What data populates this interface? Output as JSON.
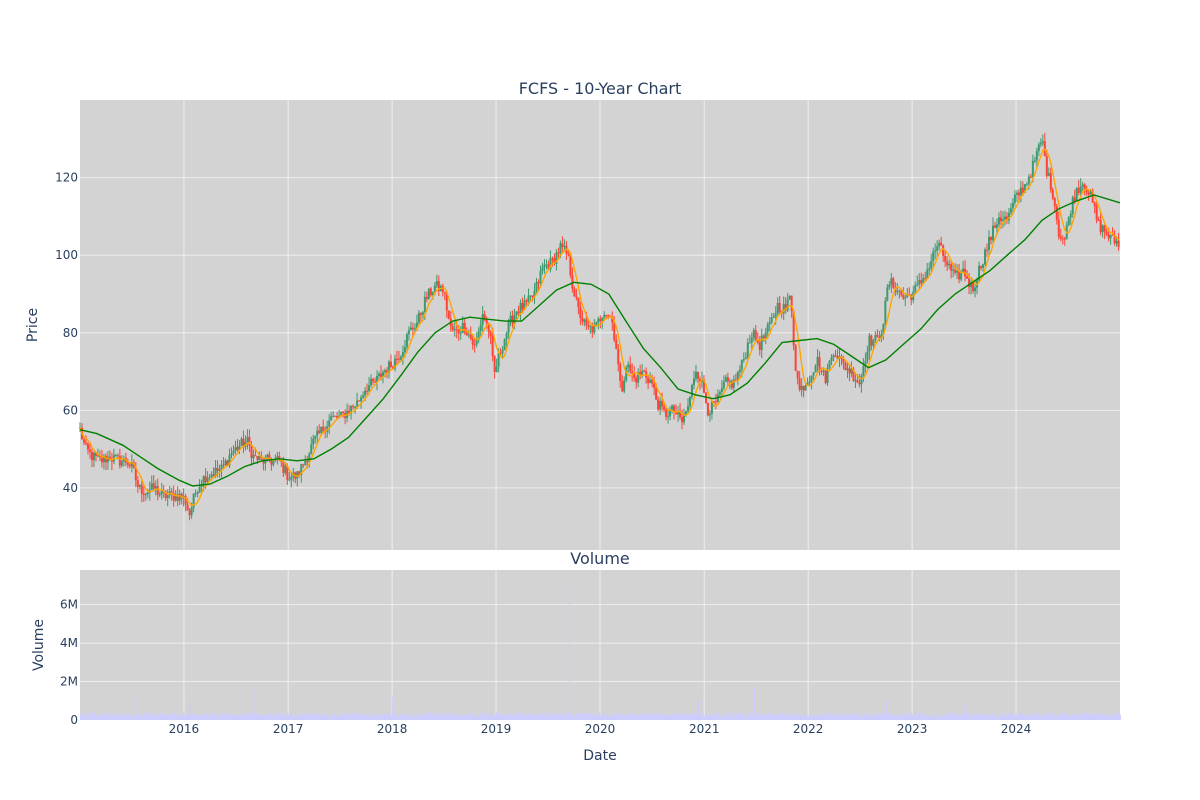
{
  "colors": {
    "plot_bg": "#d3d3d3",
    "grid": "#eeeeee",
    "increasing": "#3d9970",
    "decreasing": "#ff4136",
    "ma_short": "#ffa500",
    "ma_long": "#008000",
    "volume_bar": "#ccccff"
  },
  "chart_data": [
    {
      "type": "candlestick",
      "title": "FCFS - 10-Year Chart",
      "ylabel": "Price",
      "xlabel": "",
      "xlim": [
        "2015-01-01",
        "2024-12-31"
      ],
      "ylim": [
        24,
        140
      ],
      "y_ticks": [
        40,
        60,
        80,
        100,
        120
      ],
      "y_tick_labels": [
        "40",
        "60",
        "80",
        "100",
        "120"
      ],
      "grid": true,
      "price_path": [
        [
          "2015-01-01",
          55
        ],
        [
          "2015-01-20",
          50
        ],
        [
          "2015-02-15",
          48
        ],
        [
          "2015-03-15",
          47
        ],
        [
          "2015-04-15",
          48
        ],
        [
          "2015-05-15",
          47
        ],
        [
          "2015-06-15",
          47
        ],
        [
          "2015-07-05",
          45
        ],
        [
          "2015-07-25",
          40
        ],
        [
          "2015-08-20",
          39
        ],
        [
          "2015-09-20",
          40
        ],
        [
          "2015-10-15",
          38
        ],
        [
          "2015-11-15",
          38
        ],
        [
          "2015-12-15",
          38
        ],
        [
          "2016-01-05",
          37
        ],
        [
          "2016-01-20",
          33
        ],
        [
          "2016-02-15",
          40
        ],
        [
          "2016-03-15",
          43
        ],
        [
          "2016-04-15",
          44
        ],
        [
          "2016-05-15",
          45
        ],
        [
          "2016-06-15",
          49
        ],
        [
          "2016-07-15",
          51
        ],
        [
          "2016-08-10",
          52
        ],
        [
          "2016-09-01",
          48
        ],
        [
          "2016-10-01",
          47
        ],
        [
          "2016-11-01",
          47
        ],
        [
          "2016-12-01",
          47
        ],
        [
          "2017-01-01",
          43
        ],
        [
          "2017-02-01",
          43
        ],
        [
          "2017-03-01",
          47
        ],
        [
          "2017-04-01",
          52
        ],
        [
          "2017-05-01",
          55
        ],
        [
          "2017-06-01",
          58
        ],
        [
          "2017-07-01",
          58
        ],
        [
          "2017-08-01",
          60
        ],
        [
          "2017-09-01",
          62
        ],
        [
          "2017-10-01",
          66
        ],
        [
          "2017-11-01",
          67
        ],
        [
          "2017-12-01",
          70
        ],
        [
          "2018-01-01",
          72
        ],
        [
          "2018-02-01",
          75
        ],
        [
          "2018-03-01",
          80
        ],
        [
          "2018-04-01",
          83
        ],
        [
          "2018-05-01",
          89
        ],
        [
          "2018-06-01",
          92
        ],
        [
          "2018-07-01",
          91
        ],
        [
          "2018-07-25",
          81
        ],
        [
          "2018-08-15",
          80
        ],
        [
          "2018-09-10",
          82
        ],
        [
          "2018-10-01",
          79
        ],
        [
          "2018-10-20",
          76
        ],
        [
          "2018-11-15",
          85
        ],
        [
          "2018-12-10",
          80
        ],
        [
          "2018-12-25",
          69
        ],
        [
          "2019-01-15",
          75
        ],
        [
          "2019-02-15",
          82
        ],
        [
          "2019-03-15",
          86
        ],
        [
          "2019-04-15",
          87
        ],
        [
          "2019-05-15",
          90
        ],
        [
          "2019-06-15",
          97
        ],
        [
          "2019-07-15",
          98
        ],
        [
          "2019-08-15",
          102
        ],
        [
          "2019-09-10",
          100
        ],
        [
          "2019-09-25",
          93
        ],
        [
          "2019-10-15",
          86
        ],
        [
          "2019-11-15",
          81
        ],
        [
          "2019-12-15",
          81
        ],
        [
          "2020-01-15",
          86
        ],
        [
          "2020-02-10",
          84
        ],
        [
          "2020-02-28",
          76
        ],
        [
          "2020-03-15",
          64
        ],
        [
          "2020-04-01",
          72
        ],
        [
          "2020-05-01",
          68
        ],
        [
          "2020-06-01",
          70
        ],
        [
          "2020-07-01",
          67
        ],
        [
          "2020-07-20",
          62
        ],
        [
          "2020-08-15",
          59
        ],
        [
          "2020-09-15",
          60
        ],
        [
          "2020-10-15",
          57
        ],
        [
          "2020-11-10",
          62
        ],
        [
          "2020-12-01",
          71
        ],
        [
          "2020-12-20",
          68
        ],
        [
          "2021-01-15",
          60
        ],
        [
          "2021-02-15",
          62
        ],
        [
          "2021-03-15",
          67
        ],
        [
          "2021-04-15",
          67
        ],
        [
          "2021-05-15",
          72
        ],
        [
          "2021-06-15",
          80
        ],
        [
          "2021-07-15",
          77
        ],
        [
          "2021-08-15",
          81
        ],
        [
          "2021-09-15",
          87
        ],
        [
          "2021-10-15",
          86
        ],
        [
          "2021-11-01",
          90
        ],
        [
          "2021-11-15",
          73
        ],
        [
          "2021-12-01",
          65
        ],
        [
          "2022-01-01",
          68
        ],
        [
          "2022-02-01",
          73
        ],
        [
          "2022-03-01",
          68
        ],
        [
          "2022-04-01",
          76
        ],
        [
          "2022-05-01",
          72
        ],
        [
          "2022-06-01",
          70
        ],
        [
          "2022-07-01",
          67
        ],
        [
          "2022-08-01",
          78
        ],
        [
          "2022-09-01",
          78
        ],
        [
          "2022-09-20",
          82
        ],
        [
          "2022-10-10",
          93
        ],
        [
          "2022-11-01",
          92
        ],
        [
          "2022-12-01",
          89
        ],
        [
          "2023-01-01",
          90
        ],
        [
          "2023-02-01",
          93
        ],
        [
          "2023-03-01",
          97
        ],
        [
          "2023-04-01",
          103
        ],
        [
          "2023-05-01",
          98
        ],
        [
          "2023-06-01",
          94
        ],
        [
          "2023-07-01",
          96
        ],
        [
          "2023-08-01",
          91
        ],
        [
          "2023-09-01",
          98
        ],
        [
          "2023-10-01",
          104
        ],
        [
          "2023-11-01",
          110
        ],
        [
          "2023-12-01",
          109
        ],
        [
          "2024-01-01",
          115
        ],
        [
          "2024-02-01",
          118
        ],
        [
          "2024-03-01",
          123
        ],
        [
          "2024-04-01",
          130
        ],
        [
          "2024-04-20",
          121
        ],
        [
          "2024-05-10",
          116
        ],
        [
          "2024-06-01",
          105
        ],
        [
          "2024-06-20",
          104
        ],
        [
          "2024-07-10",
          112
        ],
        [
          "2024-08-01",
          117
        ],
        [
          "2024-08-25",
          119
        ],
        [
          "2024-09-20",
          115
        ],
        [
          "2024-10-15",
          108
        ],
        [
          "2024-11-10",
          106
        ],
        [
          "2024-12-01",
          104
        ],
        [
          "2024-12-31",
          103
        ]
      ],
      "moving_average_long": [
        [
          "2015-01-01",
          55
        ],
        [
          "2015-03-01",
          54
        ],
        [
          "2015-06-01",
          51
        ],
        [
          "2015-08-01",
          48
        ],
        [
          "2015-10-01",
          45
        ],
        [
          "2015-12-15",
          42
        ],
        [
          "2016-02-01",
          40.5
        ],
        [
          "2016-04-01",
          41
        ],
        [
          "2016-06-01",
          43
        ],
        [
          "2016-08-01",
          45.5
        ],
        [
          "2016-10-01",
          47
        ],
        [
          "2016-12-01",
          47.5
        ],
        [
          "2017-02-01",
          47
        ],
        [
          "2017-04-01",
          47.5
        ],
        [
          "2017-06-01",
          50
        ],
        [
          "2017-08-01",
          53
        ],
        [
          "2017-10-01",
          58
        ],
        [
          "2017-12-01",
          63
        ],
        [
          "2018-02-01",
          69
        ],
        [
          "2018-04-01",
          75
        ],
        [
          "2018-06-01",
          80
        ],
        [
          "2018-08-01",
          83
        ],
        [
          "2018-10-01",
          84
        ],
        [
          "2018-12-01",
          83.5
        ],
        [
          "2019-02-01",
          83
        ],
        [
          "2019-04-01",
          83
        ],
        [
          "2019-06-01",
          87
        ],
        [
          "2019-08-01",
          91
        ],
        [
          "2019-10-01",
          93
        ],
        [
          "2019-12-01",
          92.5
        ],
        [
          "2020-02-01",
          90
        ],
        [
          "2020-04-01",
          83
        ],
        [
          "2020-06-01",
          76
        ],
        [
          "2020-08-01",
          71
        ],
        [
          "2020-10-01",
          65.5
        ],
        [
          "2020-12-01",
          64
        ],
        [
          "2021-02-01",
          63
        ],
        [
          "2021-04-01",
          64
        ],
        [
          "2021-06-01",
          67
        ],
        [
          "2021-08-01",
          72
        ],
        [
          "2021-10-01",
          77.5
        ],
        [
          "2021-12-01",
          78
        ],
        [
          "2022-02-01",
          78.5
        ],
        [
          "2022-04-01",
          77
        ],
        [
          "2022-06-01",
          74
        ],
        [
          "2022-08-01",
          71
        ],
        [
          "2022-10-01",
          73
        ],
        [
          "2022-12-01",
          77
        ],
        [
          "2023-02-01",
          81
        ],
        [
          "2023-04-01",
          86
        ],
        [
          "2023-06-01",
          90
        ],
        [
          "2023-08-01",
          93
        ],
        [
          "2023-10-01",
          96
        ],
        [
          "2023-12-01",
          100
        ],
        [
          "2024-02-01",
          104
        ],
        [
          "2024-04-01",
          109
        ],
        [
          "2024-06-01",
          112
        ],
        [
          "2024-08-01",
          114
        ],
        [
          "2024-10-01",
          115.5
        ],
        [
          "2024-12-31",
          113.5
        ]
      ]
    },
    {
      "type": "bar",
      "title": "Volume",
      "xlabel": "Date",
      "ylabel": "Volume",
      "ylim": [
        0,
        7800000
      ],
      "y_ticks": [
        0,
        2000000,
        4000000,
        6000000
      ],
      "y_tick_labels": [
        "0",
        "2M",
        "4M",
        "6M"
      ],
      "x_ticks": [
        "2016-01-01",
        "2017-01-01",
        "2018-01-01",
        "2019-01-01",
        "2020-01-01",
        "2021-01-01",
        "2022-01-01",
        "2023-01-01",
        "2024-01-01"
      ],
      "x_tick_labels": [
        "2016",
        "2017",
        "2018",
        "2019",
        "2020",
        "2021",
        "2022",
        "2023",
        "2024"
      ],
      "grid": true,
      "volume_spikes": [
        [
          "2015-07-15",
          1100000
        ],
        [
          "2016-01-20",
          1000000
        ],
        [
          "2016-09-01",
          1800000
        ],
        [
          "2018-06-15",
          700000
        ],
        [
          "2018-01-01",
          1200000
        ],
        [
          "2019-09-15",
          7400000
        ],
        [
          "2020-03-15",
          900000
        ],
        [
          "2020-12-10",
          1000000
        ],
        [
          "2021-06-25",
          1700000
        ],
        [
          "2021-11-15",
          900000
        ],
        [
          "2022-10-01",
          1100000
        ],
        [
          "2023-07-01",
          900000
        ],
        [
          "2024-04-25",
          1100000
        ]
      ]
    }
  ]
}
